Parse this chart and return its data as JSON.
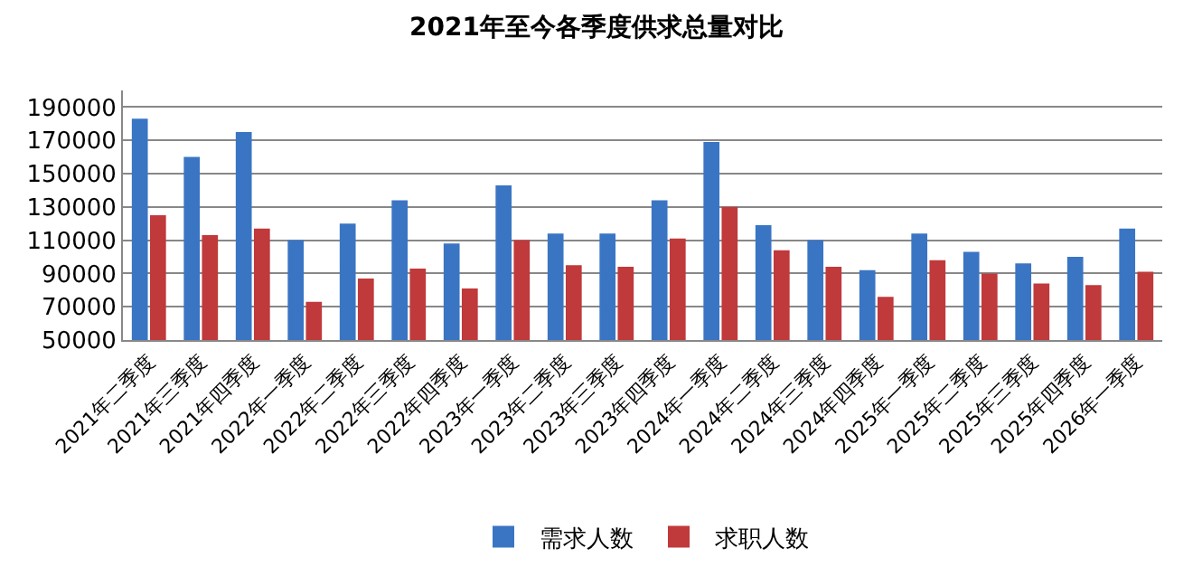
{
  "chart_data": {
    "type": "bar",
    "title": "2021年至今各季度供求总量对比",
    "categories": [
      "2021年二季度",
      "2021年三季度",
      "2021年四季度",
      "2022年一季度",
      "2022年二季度",
      "2022年三季度",
      "2022年四季度",
      "2023年一季度",
      "2023年二季度",
      "2023年三季度",
      "2023年四季度",
      "2024年一季度",
      "2024年二季度",
      "2024年三季度",
      "2024年四季度",
      "2025年一季度",
      "2025年二季度",
      "2025年三季度",
      "2025年四季度",
      "2026年一季度"
    ],
    "series": [
      {
        "name": "需求人数",
        "color": "#3a75c4",
        "values": [
          183000,
          160000,
          175000,
          110000,
          120000,
          134000,
          108000,
          143000,
          114000,
          114000,
          134000,
          169000,
          119000,
          110000,
          92000,
          114000,
          103000,
          96000,
          100000,
          117000
        ]
      },
      {
        "name": "求职人数",
        "color": "#c0393b",
        "values": [
          125000,
          113000,
          117000,
          73000,
          87000,
          93000,
          81000,
          110000,
          95000,
          94000,
          111000,
          130000,
          104000,
          94000,
          76000,
          98000,
          90000,
          84000,
          83000,
          91000
        ]
      }
    ],
    "ylim": [
      50000,
      200000
    ],
    "yticks": [
      50000,
      70000,
      90000,
      110000,
      130000,
      150000,
      170000,
      190000
    ],
    "grid": "y",
    "legend": "bottom"
  }
}
